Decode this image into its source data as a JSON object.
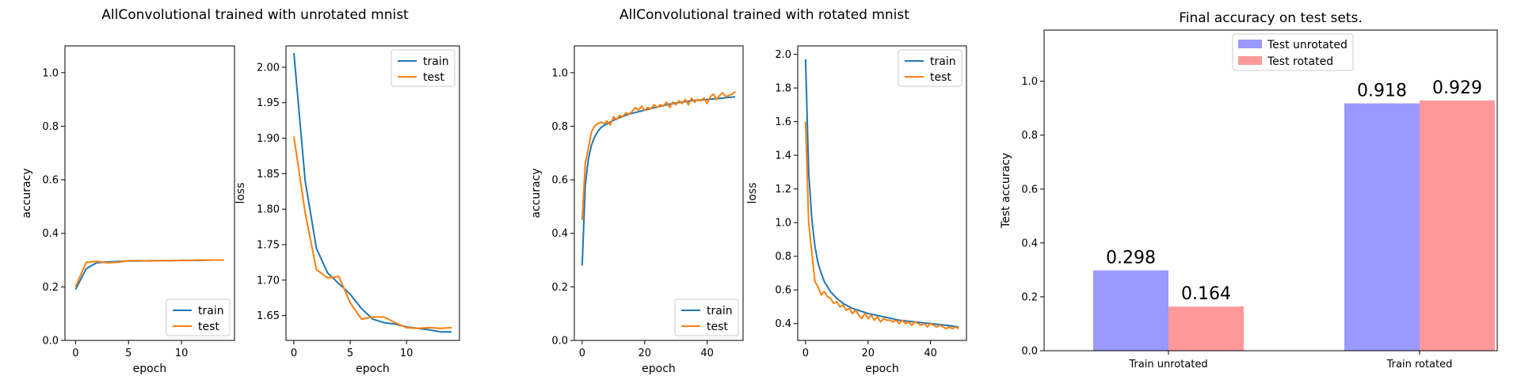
{
  "groups": [
    {
      "title": "AllConvolutional trained with unrotated mnist"
    },
    {
      "title": "AllConvolutional trained with rotated mnist"
    }
  ],
  "chart_data": [
    {
      "type": "line",
      "group": 0,
      "xlabel": "epoch",
      "ylabel": "accuracy",
      "xlim": [
        -1,
        15
      ],
      "ylim": [
        0,
        1.1
      ],
      "xticks": [
        0,
        5,
        10
      ],
      "yticks": [
        "0.0",
        "0.2",
        "0.4",
        "0.6",
        "0.8",
        "1.0"
      ],
      "legend": {
        "position": "lower-right"
      },
      "series": [
        {
          "name": "train",
          "color": "#1f77b4",
          "x": [
            0,
            1,
            2,
            3,
            4,
            5,
            6,
            7,
            8,
            9,
            10,
            11,
            12,
            13,
            14
          ],
          "y": [
            0.19,
            0.268,
            0.29,
            0.293,
            0.295,
            0.297,
            0.297,
            0.298,
            0.298,
            0.298,
            0.299,
            0.299,
            0.299,
            0.3,
            0.3
          ]
        },
        {
          "name": "test",
          "color": "#ff7f0e",
          "x": [
            0,
            1,
            2,
            3,
            4,
            5,
            6,
            7,
            8,
            9,
            10,
            11,
            12,
            13,
            14
          ],
          "y": [
            0.2,
            0.292,
            0.295,
            0.29,
            0.292,
            0.298,
            0.298,
            0.297,
            0.298,
            0.298,
            0.299,
            0.299,
            0.3,
            0.3,
            0.3
          ]
        }
      ]
    },
    {
      "type": "line",
      "group": 0,
      "xlabel": "epoch",
      "ylabel": "loss",
      "xlim": [
        -0.7,
        14.7
      ],
      "ylim": [
        1.615,
        2.03
      ],
      "xticks": [
        0,
        5,
        10
      ],
      "yticks": [
        "1.65",
        "1.70",
        "1.75",
        "1.80",
        "1.85",
        "1.90",
        "1.95",
        "2.00"
      ],
      "legend": {
        "position": "top-right"
      },
      "series": [
        {
          "name": "train",
          "color": "#1f77b4",
          "x": [
            0,
            1,
            2,
            3,
            4,
            5,
            6,
            7,
            8,
            9,
            10,
            11,
            12,
            13,
            14
          ],
          "y": [
            2.02,
            1.84,
            1.745,
            1.71,
            1.695,
            1.68,
            1.66,
            1.645,
            1.64,
            1.638,
            1.634,
            1.632,
            1.63,
            1.627,
            1.627
          ]
        },
        {
          "name": "test",
          "color": "#ff7f0e",
          "x": [
            0,
            1,
            2,
            3,
            4,
            5,
            6,
            7,
            8,
            9,
            10,
            11,
            12,
            13,
            14
          ],
          "y": [
            1.902,
            1.795,
            1.715,
            1.703,
            1.705,
            1.668,
            1.645,
            1.648,
            1.648,
            1.64,
            1.633,
            1.632,
            1.633,
            1.632,
            1.633
          ]
        }
      ]
    },
    {
      "type": "line",
      "group": 1,
      "xlabel": "epoch",
      "ylabel": "accuracy",
      "xlim": [
        -2.5,
        51.5
      ],
      "ylim": [
        0,
        1.1
      ],
      "xticks": [
        0,
        20,
        40
      ],
      "yticks": [
        "0.0",
        "0.2",
        "0.4",
        "0.6",
        "0.8",
        "1.0"
      ],
      "legend": {
        "position": "lower-right"
      },
      "series": [
        {
          "name": "train",
          "color": "#1f77b4",
          "x": [
            0,
            1,
            2,
            3,
            4,
            5,
            6,
            8,
            10,
            12,
            15,
            20,
            25,
            30,
            35,
            40,
            45,
            49
          ],
          "y": [
            0.28,
            0.58,
            0.68,
            0.73,
            0.76,
            0.78,
            0.795,
            0.81,
            0.822,
            0.832,
            0.845,
            0.86,
            0.875,
            0.887,
            0.895,
            0.9,
            0.905,
            0.91
          ]
        },
        {
          "name": "test",
          "color": "#ff7f0e",
          "x": [
            0,
            1,
            2,
            3,
            4,
            5,
            6,
            7,
            8,
            9,
            10,
            11,
            12,
            13,
            14,
            15,
            16,
            17,
            18,
            19,
            20,
            21,
            22,
            23,
            24,
            25,
            26,
            27,
            28,
            29,
            30,
            31,
            32,
            33,
            34,
            35,
            36,
            37,
            38,
            39,
            40,
            41,
            42,
            43,
            44,
            45,
            46,
            47,
            48,
            49
          ],
          "y": [
            0.45,
            0.66,
            0.72,
            0.78,
            0.8,
            0.81,
            0.815,
            0.81,
            0.82,
            0.805,
            0.835,
            0.825,
            0.84,
            0.835,
            0.85,
            0.845,
            0.855,
            0.87,
            0.86,
            0.875,
            0.86,
            0.87,
            0.865,
            0.88,
            0.87,
            0.88,
            0.875,
            0.89,
            0.87,
            0.89,
            0.88,
            0.895,
            0.885,
            0.9,
            0.88,
            0.905,
            0.89,
            0.9,
            0.895,
            0.905,
            0.885,
            0.91,
            0.92,
            0.9,
            0.915,
            0.925,
            0.91,
            0.915,
            0.92,
            0.93
          ]
        }
      ]
    },
    {
      "type": "line",
      "group": 1,
      "xlabel": "epoch",
      "ylabel": "loss",
      "xlim": [
        -2.5,
        51.5
      ],
      "ylim": [
        0.3,
        2.05
      ],
      "xticks": [
        0,
        20,
        40
      ],
      "yticks": [
        "0.4",
        "0.6",
        "0.8",
        "1.0",
        "1.2",
        "1.4",
        "1.6",
        "1.8",
        "2.0"
      ],
      "legend": {
        "position": "top-right"
      },
      "series": [
        {
          "name": "train",
          "color": "#1f77b4",
          "x": [
            0,
            1,
            2,
            3,
            4,
            5,
            6,
            8,
            10,
            12,
            15,
            20,
            25,
            30,
            35,
            40,
            45,
            49
          ],
          "y": [
            1.97,
            1.3,
            1.02,
            0.86,
            0.76,
            0.7,
            0.65,
            0.59,
            0.55,
            0.52,
            0.49,
            0.46,
            0.44,
            0.42,
            0.41,
            0.4,
            0.39,
            0.38
          ]
        },
        {
          "name": "test",
          "color": "#ff7f0e",
          "x": [
            0,
            1,
            2,
            3,
            4,
            5,
            6,
            7,
            8,
            9,
            10,
            11,
            12,
            13,
            14,
            15,
            16,
            17,
            18,
            19,
            20,
            21,
            22,
            23,
            24,
            25,
            26,
            27,
            28,
            29,
            30,
            31,
            32,
            33,
            34,
            35,
            36,
            37,
            38,
            39,
            40,
            41,
            42,
            43,
            44,
            45,
            46,
            47,
            48,
            49
          ],
          "y": [
            1.6,
            1.0,
            0.82,
            0.65,
            0.62,
            0.57,
            0.59,
            0.56,
            0.55,
            0.52,
            0.53,
            0.5,
            0.51,
            0.48,
            0.49,
            0.46,
            0.48,
            0.45,
            0.43,
            0.46,
            0.43,
            0.45,
            0.42,
            0.44,
            0.41,
            0.43,
            0.42,
            0.42,
            0.41,
            0.42,
            0.4,
            0.42,
            0.4,
            0.41,
            0.39,
            0.41,
            0.4,
            0.39,
            0.4,
            0.38,
            0.4,
            0.39,
            0.38,
            0.39,
            0.38,
            0.37,
            0.38,
            0.37,
            0.38,
            0.37
          ]
        }
      ]
    },
    {
      "type": "bar",
      "title": "Final accuracy on test sets.",
      "xlabel": "",
      "ylabel": "Test accuracy",
      "ylim": [
        0,
        1.19
      ],
      "yticks": [
        "0.0",
        "0.2",
        "0.4",
        "0.6",
        "0.8",
        "1.0"
      ],
      "categories": [
        "Train unrotated",
        "Train rotated"
      ],
      "legend": {
        "position": "top-center"
      },
      "series": [
        {
          "name": "Test unrotated",
          "color": "#9999ff",
          "values": [
            0.298,
            0.918
          ],
          "labels": [
            "0.298",
            "0.918"
          ]
        },
        {
          "name": "Test rotated",
          "color": "#ff9999",
          "values": [
            0.164,
            0.929
          ],
          "labels": [
            "0.164",
            "0.929"
          ]
        }
      ]
    }
  ]
}
